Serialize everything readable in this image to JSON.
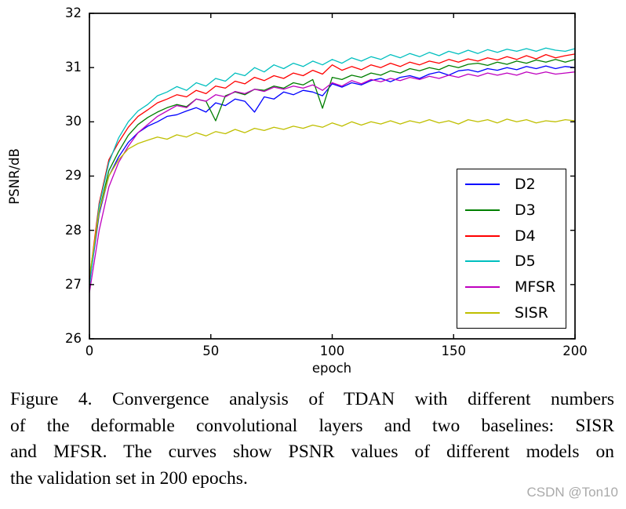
{
  "figure": {
    "caption_lines": [
      "Figure 4. Convergence analysis of TDAN with different numbers",
      "of the deformable convolutional layers and two baselines: SISR",
      "and MFSR. The curves show PSNR values of different models on",
      "the validation set in 200 epochs."
    ],
    "watermark": "CSDN @Ton10",
    "watermark_color": "#aaaaaa"
  },
  "chart_data": {
    "type": "line",
    "title": "",
    "xlabel": "epoch",
    "ylabel": "PSNR/dB",
    "xlim": [
      0,
      200
    ],
    "ylim": [
      26,
      32
    ],
    "x_ticks": [
      0,
      50,
      100,
      150,
      200
    ],
    "y_ticks": [
      26,
      27,
      28,
      29,
      30,
      31,
      32
    ],
    "grid": false,
    "legend_position": "lower-right-inside",
    "axis_color": "#000000",
    "x": [
      0,
      4,
      8,
      12,
      16,
      20,
      24,
      28,
      32,
      36,
      40,
      44,
      48,
      52,
      56,
      60,
      64,
      68,
      72,
      76,
      80,
      84,
      88,
      92,
      96,
      100,
      104,
      108,
      112,
      116,
      120,
      124,
      128,
      132,
      136,
      140,
      144,
      148,
      152,
      156,
      160,
      164,
      168,
      172,
      176,
      180,
      184,
      188,
      192,
      196,
      200
    ],
    "series": [
      {
        "name": "D2",
        "color": "#0000ff",
        "values": [
          27.0,
          28.3,
          29.0,
          29.35,
          29.62,
          29.8,
          29.92,
          30.0,
          30.1,
          30.13,
          30.2,
          30.26,
          30.18,
          30.35,
          30.3,
          30.42,
          30.38,
          30.18,
          30.46,
          30.42,
          30.55,
          30.5,
          30.58,
          30.55,
          30.48,
          30.7,
          30.64,
          30.72,
          30.68,
          30.76,
          30.8,
          30.74,
          30.82,
          30.85,
          30.8,
          30.88,
          30.92,
          30.86,
          30.94,
          30.96,
          30.92,
          30.98,
          30.95,
          31.0,
          30.96,
          31.02,
          30.98,
          31.03,
          30.98,
          31.02,
          31.0
        ]
      },
      {
        "name": "D3",
        "color": "#007f00",
        "values": [
          27.05,
          28.35,
          29.1,
          29.45,
          29.75,
          29.95,
          30.08,
          30.18,
          30.26,
          30.32,
          30.28,
          30.42,
          30.38,
          30.02,
          30.48,
          30.55,
          30.5,
          30.6,
          30.58,
          30.66,
          30.62,
          30.72,
          30.68,
          30.78,
          30.25,
          30.82,
          30.78,
          30.86,
          30.82,
          30.9,
          30.86,
          30.94,
          30.9,
          30.98,
          30.94,
          31.0,
          30.96,
          31.04,
          31.0,
          31.06,
          31.08,
          31.04,
          31.1,
          31.06,
          31.12,
          31.08,
          31.14,
          31.1,
          31.15,
          31.1,
          31.15
        ]
      },
      {
        "name": "D4",
        "color": "#ff0000",
        "values": [
          27.1,
          28.5,
          29.3,
          29.62,
          29.9,
          30.1,
          30.22,
          30.35,
          30.42,
          30.5,
          30.46,
          30.58,
          30.52,
          30.66,
          30.62,
          30.75,
          30.7,
          30.82,
          30.76,
          30.85,
          30.8,
          30.9,
          30.85,
          30.95,
          30.88,
          31.05,
          30.95,
          31.02,
          30.96,
          31.05,
          31.0,
          31.08,
          31.02,
          31.1,
          31.05,
          31.12,
          31.08,
          31.15,
          31.1,
          31.16,
          31.12,
          31.18,
          31.14,
          31.2,
          31.15,
          31.22,
          31.16,
          31.24,
          31.18,
          31.22,
          31.25
        ]
      },
      {
        "name": "D5",
        "color": "#00bfbf",
        "values": [
          26.95,
          28.45,
          29.25,
          29.7,
          30.0,
          30.2,
          30.32,
          30.48,
          30.55,
          30.65,
          30.58,
          30.72,
          30.66,
          30.8,
          30.75,
          30.9,
          30.85,
          31.0,
          30.92,
          31.05,
          30.98,
          31.08,
          31.02,
          31.12,
          31.05,
          31.15,
          31.08,
          31.18,
          31.12,
          31.2,
          31.15,
          31.24,
          31.18,
          31.26,
          31.2,
          31.28,
          31.22,
          31.3,
          31.25,
          31.32,
          31.26,
          31.33,
          31.28,
          31.34,
          31.3,
          31.35,
          31.3,
          31.36,
          31.32,
          31.3,
          31.35
        ]
      },
      {
        "name": "MFSR",
        "color": "#bf00bf",
        "values": [
          26.85,
          28.0,
          28.8,
          29.25,
          29.55,
          29.8,
          29.95,
          30.1,
          30.2,
          30.3,
          30.26,
          30.42,
          30.38,
          30.5,
          30.46,
          30.56,
          30.52,
          30.6,
          30.56,
          30.64,
          30.6,
          30.66,
          30.62,
          30.68,
          30.58,
          30.72,
          30.66,
          30.76,
          30.7,
          30.78,
          30.74,
          30.8,
          30.76,
          30.82,
          30.78,
          30.84,
          30.8,
          30.86,
          30.82,
          30.88,
          30.84,
          30.9,
          30.86,
          30.9,
          30.86,
          30.92,
          30.88,
          30.92,
          30.88,
          30.9,
          30.92
        ]
      },
      {
        "name": "SISR",
        "color": "#bfbf00",
        "values": [
          27.15,
          28.35,
          29.0,
          29.3,
          29.5,
          29.6,
          29.66,
          29.72,
          29.68,
          29.76,
          29.72,
          29.8,
          29.74,
          29.82,
          29.78,
          29.86,
          29.8,
          29.88,
          29.84,
          29.9,
          29.86,
          29.92,
          29.88,
          29.94,
          29.9,
          29.98,
          29.92,
          30.0,
          29.94,
          30.0,
          29.96,
          30.02,
          29.96,
          30.02,
          29.98,
          30.04,
          29.98,
          30.02,
          29.96,
          30.04,
          30.0,
          30.04,
          29.98,
          30.05,
          30.0,
          30.04,
          29.98,
          30.02,
          30.0,
          30.04,
          30.02
        ]
      }
    ]
  }
}
